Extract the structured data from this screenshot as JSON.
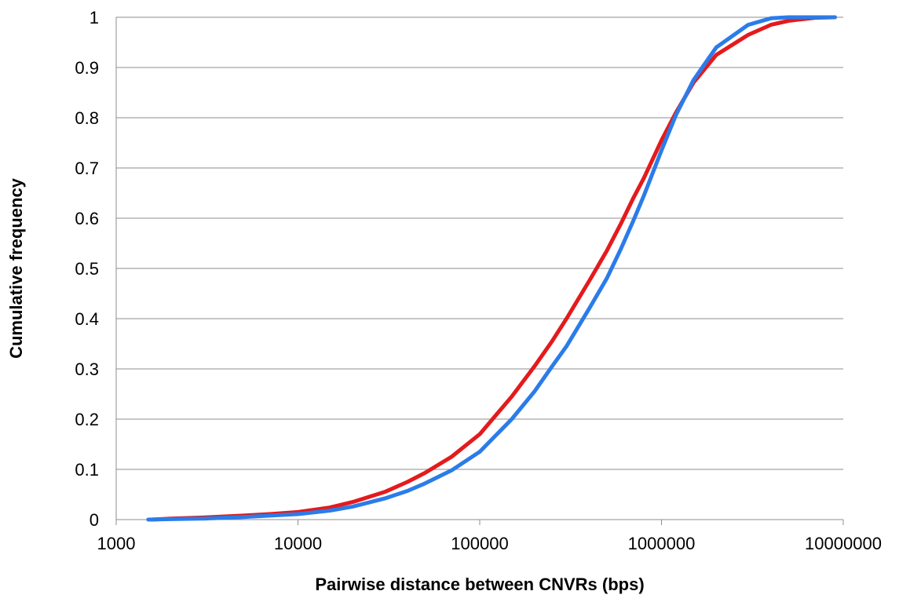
{
  "chart_data": {
    "type": "line",
    "title": "",
    "xlabel": "Pairwise distance between CNVRs (bps)",
    "ylabel": "Cumulative frequency",
    "x_scale": "log",
    "xlim": [
      1000,
      10000000
    ],
    "ylim": [
      0,
      1
    ],
    "x_ticks": [
      "1000",
      "10000",
      "100000",
      "1000000",
      "10000000"
    ],
    "y_ticks": [
      "0",
      "0.1",
      "0.2",
      "0.3",
      "0.4",
      "0.5",
      "0.6",
      "0.7",
      "0.8",
      "0.9",
      "1"
    ],
    "grid": "horizontal",
    "legend": "none",
    "series": [
      {
        "color": "#e41a1c",
        "x": [
          1580,
          2000,
          3000,
          5000,
          7000,
          10000,
          15000,
          20000,
          30000,
          40000,
          50000,
          70000,
          100000,
          150000,
          200000,
          250000,
          300000,
          400000,
          500000,
          600000,
          700000,
          800000,
          1000000,
          1200000,
          1500000,
          2000000,
          3000000,
          4000000,
          5000000,
          7000000,
          9000000
        ],
        "y": [
          0.0,
          0.002,
          0.004,
          0.008,
          0.011,
          0.015,
          0.024,
          0.035,
          0.055,
          0.075,
          0.093,
          0.125,
          0.17,
          0.245,
          0.305,
          0.355,
          0.4,
          0.475,
          0.535,
          0.59,
          0.64,
          0.68,
          0.755,
          0.81,
          0.87,
          0.925,
          0.965,
          0.985,
          0.993,
          0.999,
          1.0
        ]
      },
      {
        "color": "#2b7ce9",
        "x": [
          1500,
          2000,
          3000,
          5000,
          7000,
          10000,
          15000,
          20000,
          30000,
          40000,
          50000,
          70000,
          100000,
          150000,
          200000,
          250000,
          300000,
          400000,
          500000,
          600000,
          700000,
          800000,
          1000000,
          1200000,
          1500000,
          2000000,
          3000000,
          4000000,
          5000000,
          7000000,
          9000000
        ],
        "y": [
          0.0,
          0.001,
          0.002,
          0.005,
          0.008,
          0.011,
          0.018,
          0.026,
          0.042,
          0.057,
          0.072,
          0.098,
          0.135,
          0.2,
          0.255,
          0.305,
          0.345,
          0.42,
          0.48,
          0.54,
          0.595,
          0.645,
          0.735,
          0.805,
          0.875,
          0.94,
          0.985,
          0.998,
          1.0,
          1.0,
          1.0
        ]
      }
    ]
  }
}
